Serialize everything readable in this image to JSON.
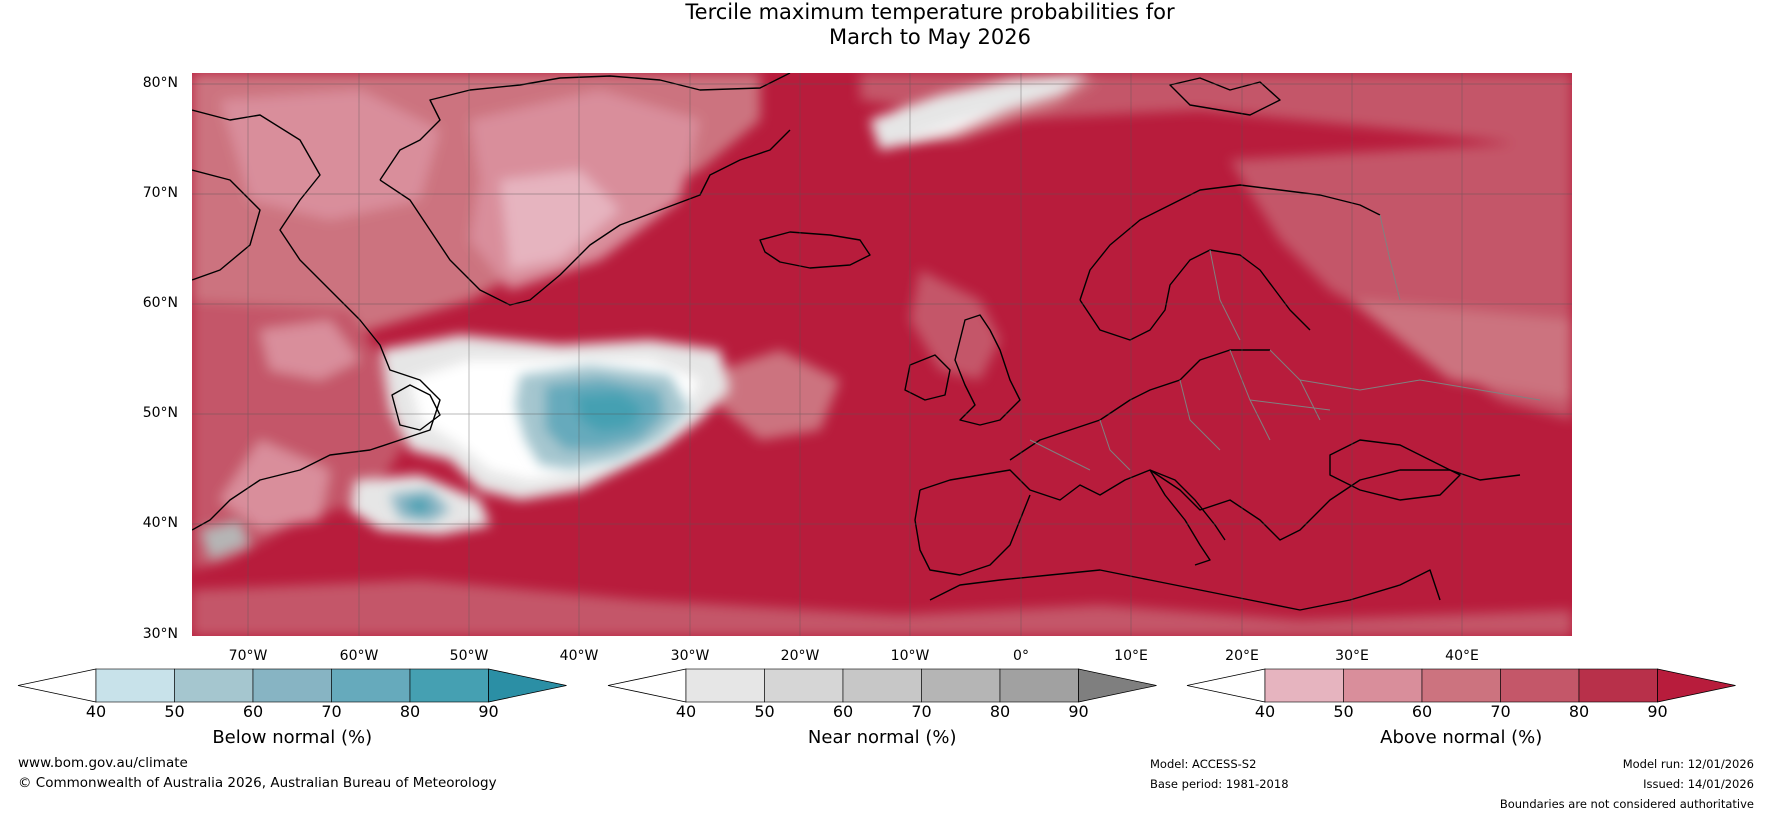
{
  "title": {
    "line1": "Tercile maximum temperature probabilities for",
    "line2": "March to May 2026"
  },
  "map": {
    "lat_labels": [
      "80°N",
      "70°N",
      "60°N",
      "50°N",
      "40°N",
      "30°N"
    ],
    "lon_labels": [
      "70°W",
      "60°W",
      "50°W",
      "40°W",
      "30°W",
      "20°W",
      "10°W",
      "0°",
      "10°E",
      "20°E",
      "30°E",
      "40°E"
    ],
    "colors": {
      "above_fill": "#b81c3c",
      "land_outline": "#000000",
      "border": "#808080",
      "grid": "#555555"
    }
  },
  "colorbars": [
    {
      "label": "Below normal (%)",
      "ticks": [
        "40",
        "50",
        "60",
        "70",
        "80",
        "90"
      ],
      "colors": [
        "#ffffff",
        "#c8e2ea",
        "#a5c6cf",
        "#87b4c3",
        "#66aabc",
        "#45a0b2",
        "#2b8fa5"
      ]
    },
    {
      "label": "Near normal (%)",
      "ticks": [
        "40",
        "50",
        "60",
        "70",
        "80",
        "90"
      ],
      "colors": [
        "#ffffff",
        "#e6e6e6",
        "#d6d6d6",
        "#c7c7c7",
        "#b5b5b5",
        "#a1a1a1",
        "#7f7f7f"
      ]
    },
    {
      "label": "Above normal (%)",
      "ticks": [
        "40",
        "50",
        "60",
        "70",
        "80",
        "90"
      ],
      "colors": [
        "#ffffff",
        "#e6b4bf",
        "#d98e9b",
        "#cc737f",
        "#c45769",
        "#b8304a",
        "#b81c3c"
      ]
    }
  ],
  "footer": {
    "website": "www.bom.gov.au/climate",
    "copyright": "© Commonwealth of Australia 2026, Australian Bureau of Meteorology",
    "model": "Model: ACCESS-S2",
    "base_period": "Base period: 1981-2018",
    "model_run": "Model run: 12/01/2026",
    "issued": "Issued: 14/01/2026",
    "disclaimer": "Boundaries are not considered authoritative"
  }
}
